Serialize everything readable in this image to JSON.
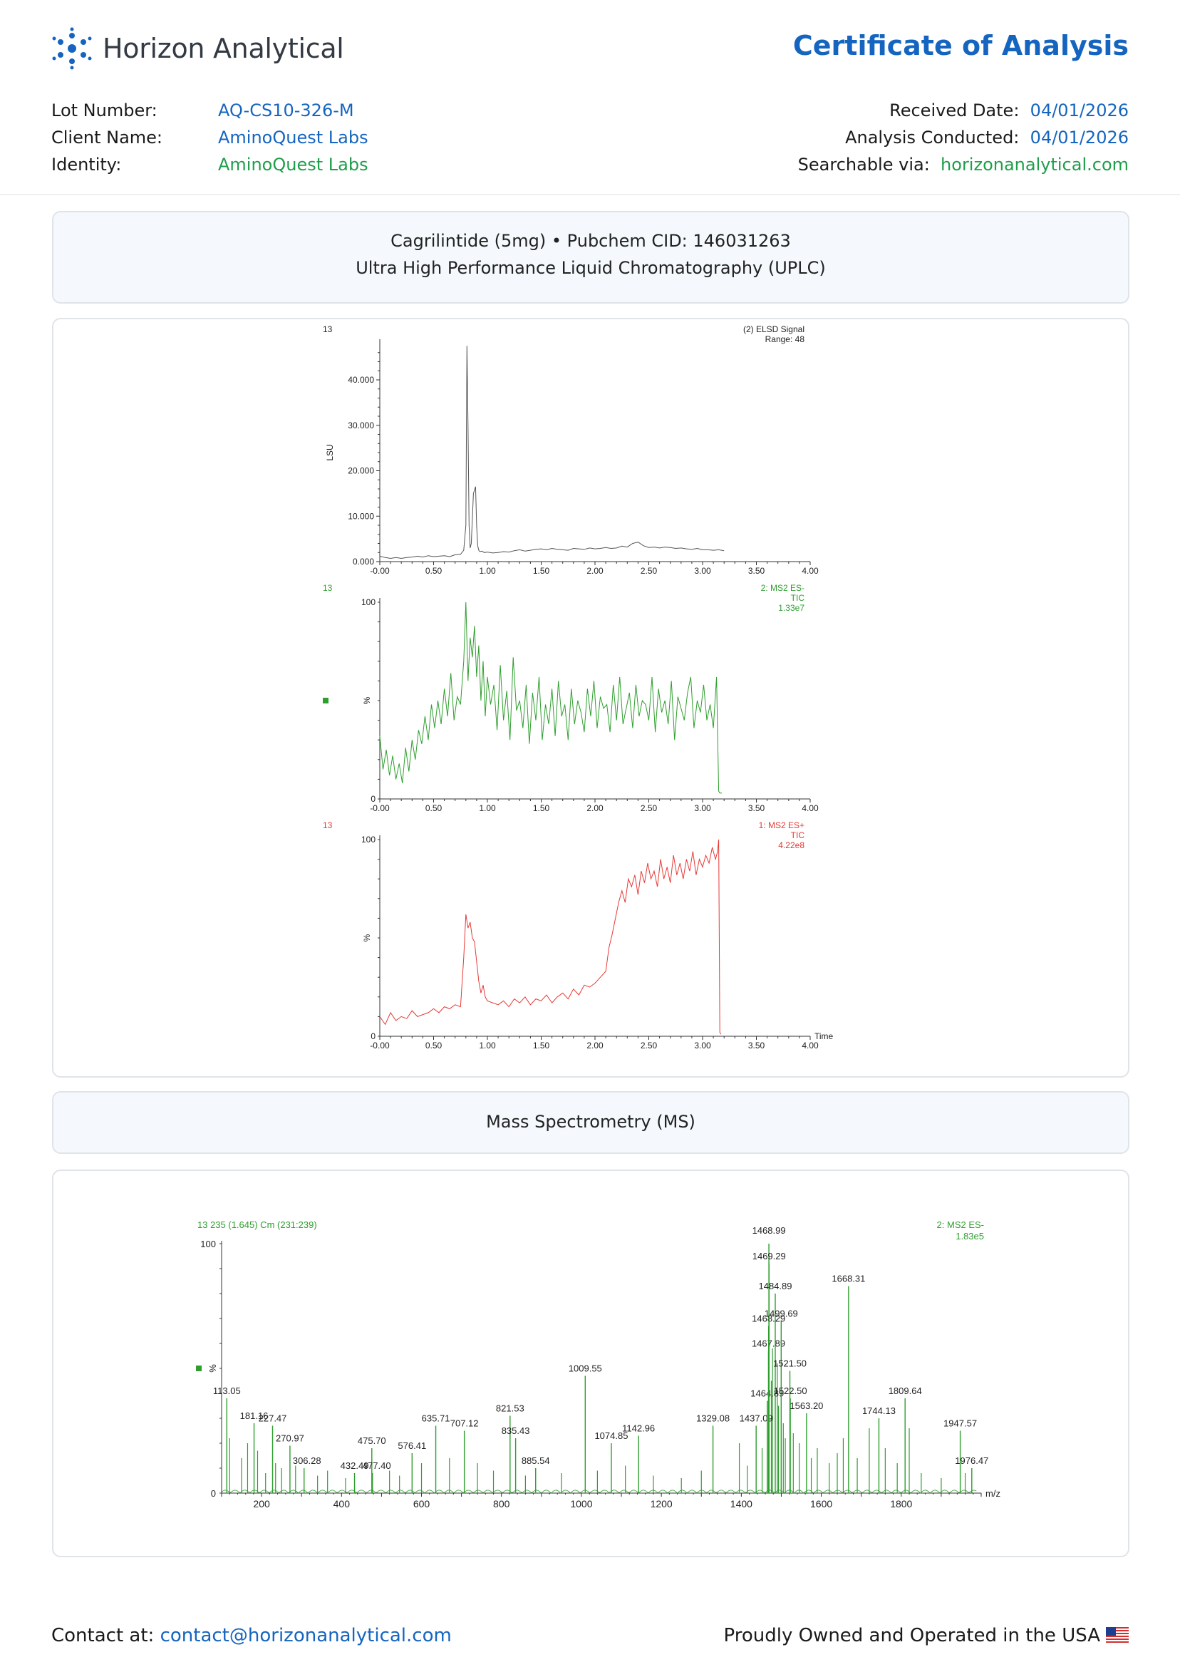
{
  "brand": {
    "name": "Horizon Analytical",
    "document_title": "Certificate of Analysis",
    "accent_color": "#1565c0",
    "green_color": "#1e9e4a"
  },
  "meta": {
    "lot_label": "Lot Number:",
    "lot_value": "AQ-CS10-326-M",
    "client_label": "Client Name:",
    "client_value": "AminoQuest Labs",
    "identity_label": "Identity:",
    "identity_value": "AminoQuest Labs",
    "received_label": "Received Date:",
    "received_value": "04/01/2026",
    "conducted_label": "Analysis Conducted:",
    "conducted_value": "04/01/2026",
    "search_label": "Searchable via:",
    "search_value": "horizonanalytical.com"
  },
  "uplc_section": {
    "line1": "Cagrilintide (5mg) • Pubchem CID: 146031263",
    "line2": "Ultra High Performance Liquid Chromatography (UPLC)"
  },
  "ms_section": {
    "title": "Mass Spectrometry (MS)"
  },
  "footer": {
    "contact_label": "Contact at:",
    "contact_email": "contact@horizonanalytical.com",
    "made_in": "Proudly Owned and Operated in the USA"
  },
  "chart_data": [
    {
      "type": "line",
      "corner_label": "13",
      "legend_line1": "(2) ELSD Signal",
      "legend_line2": "Range: 48",
      "ylabel": "LSU",
      "xlim": [
        0,
        4
      ],
      "ylim": [
        0,
        48
      ],
      "x_ticks": [
        "-0.00",
        "0.50",
        "1.00",
        "1.50",
        "2.00",
        "2.50",
        "3.00",
        "3.50",
        "4.00"
      ],
      "y_ticks": [
        "0.000",
        "10.000",
        "20.000",
        "30.000",
        "40.000"
      ],
      "color": "#555555",
      "x": [
        0,
        0.05,
        0.1,
        0.15,
        0.2,
        0.25,
        0.3,
        0.35,
        0.4,
        0.45,
        0.5,
        0.55,
        0.6,
        0.65,
        0.7,
        0.75,
        0.78,
        0.8,
        0.81,
        0.82,
        0.83,
        0.84,
        0.85,
        0.87,
        0.89,
        0.9,
        0.91,
        0.92,
        0.93,
        0.95,
        0.97,
        1.0,
        1.05,
        1.1,
        1.15,
        1.2,
        1.25,
        1.3,
        1.35,
        1.4,
        1.45,
        1.5,
        1.55,
        1.6,
        1.65,
        1.7,
        1.75,
        1.8,
        1.85,
        1.9,
        1.95,
        2.0,
        2.05,
        2.1,
        2.15,
        2.2,
        2.25,
        2.3,
        2.35,
        2.4,
        2.45,
        2.5,
        2.55,
        2.6,
        2.65,
        2.7,
        2.75,
        2.8,
        2.85,
        2.9,
        2.95,
        3.0,
        3.05,
        3.1,
        3.15,
        3.2
      ],
      "y": [
        1.2,
        0.9,
        0.7,
        0.9,
        0.7,
        0.9,
        1.0,
        1.2,
        1.0,
        1.3,
        1.1,
        1.2,
        1.3,
        1.1,
        1.5,
        1.6,
        2.5,
        8,
        47.5,
        30,
        8,
        3,
        4,
        15,
        16.5,
        8,
        3.5,
        2.5,
        2.2,
        2.3,
        2,
        2.1,
        1.9,
        2.0,
        2.2,
        2.1,
        2.4,
        2.6,
        2.3,
        2.5,
        2.7,
        2.8,
        2.6,
        2.9,
        2.7,
        2.6,
        2.5,
        2.9,
        2.8,
        2.7,
        3.0,
        2.8,
        2.9,
        3.1,
        2.9,
        3.0,
        3.4,
        3.2,
        4.0,
        4.3,
        3.5,
        3.1,
        3.2,
        3.0,
        3.2,
        3.1,
        2.9,
        3.0,
        2.8,
        2.7,
        2.9,
        2.6,
        2.6,
        2.5,
        2.6,
        2.4
      ]
    },
    {
      "type": "line",
      "corner_label": "13",
      "legend_line1": "2: MS2 ES-",
      "legend_line2": "TIC",
      "legend_line3": "1.33e7",
      "ylabel": "%",
      "xlim": [
        0,
        4
      ],
      "ylim": [
        0,
        100
      ],
      "x_ticks": [
        "-0.00",
        "0.50",
        "1.00",
        "1.50",
        "2.00",
        "2.50",
        "3.00",
        "3.50",
        "4.00"
      ],
      "y_ticks": [
        "0",
        "100"
      ],
      "color": "#2e9e2e",
      "x": [
        0,
        0.03,
        0.06,
        0.09,
        0.12,
        0.15,
        0.18,
        0.21,
        0.24,
        0.27,
        0.3,
        0.33,
        0.36,
        0.39,
        0.42,
        0.45,
        0.48,
        0.51,
        0.54,
        0.57,
        0.6,
        0.63,
        0.66,
        0.69,
        0.72,
        0.75,
        0.78,
        0.8,
        0.82,
        0.84,
        0.86,
        0.88,
        0.9,
        0.92,
        0.94,
        0.96,
        0.98,
        1.0,
        1.03,
        1.06,
        1.09,
        1.12,
        1.15,
        1.18,
        1.21,
        1.24,
        1.27,
        1.3,
        1.33,
        1.36,
        1.39,
        1.42,
        1.45,
        1.48,
        1.51,
        1.54,
        1.57,
        1.6,
        1.63,
        1.66,
        1.69,
        1.72,
        1.75,
        1.78,
        1.81,
        1.84,
        1.87,
        1.9,
        1.93,
        1.96,
        1.99,
        2.02,
        2.05,
        2.08,
        2.11,
        2.14,
        2.17,
        2.2,
        2.23,
        2.26,
        2.29,
        2.32,
        2.35,
        2.38,
        2.41,
        2.44,
        2.47,
        2.5,
        2.53,
        2.56,
        2.59,
        2.62,
        2.65,
        2.68,
        2.71,
        2.74,
        2.77,
        2.8,
        2.83,
        2.86,
        2.89,
        2.92,
        2.95,
        2.98,
        3.01,
        3.04,
        3.07,
        3.1,
        3.13,
        3.15,
        3.16,
        3.18
      ],
      "y": [
        32,
        15,
        25,
        12,
        22,
        10,
        18,
        8,
        26,
        14,
        30,
        20,
        35,
        28,
        42,
        30,
        48,
        36,
        50,
        38,
        56,
        42,
        64,
        40,
        52,
        48,
        70,
        100,
        60,
        82,
        72,
        88,
        62,
        78,
        50,
        70,
        42,
        62,
        48,
        58,
        35,
        68,
        40,
        55,
        30,
        72,
        45,
        50,
        36,
        58,
        28,
        54,
        40,
        62,
        30,
        48,
        38,
        56,
        32,
        60,
        42,
        48,
        30,
        56,
        38,
        50,
        44,
        34,
        56,
        42,
        60,
        36,
        52,
        46,
        48,
        34,
        58,
        40,
        62,
        38,
        46,
        54,
        36,
        58,
        42,
        50,
        48,
        40,
        62,
        34,
        56,
        44,
        50,
        38,
        60,
        30,
        52,
        46,
        40,
        54,
        62,
        36,
        50,
        44,
        58,
        40,
        48,
        36,
        62,
        4,
        3,
        3
      ]
    },
    {
      "type": "line",
      "corner_label": "13",
      "legend_line1": "1: MS2 ES+",
      "legend_line2": "TIC",
      "legend_line3": "4.22e8",
      "ylabel": "%",
      "xlabel": "Time",
      "xlim": [
        0,
        4
      ],
      "ylim": [
        0,
        100
      ],
      "x_ticks": [
        "-0.00",
        "0.50",
        "1.00",
        "1.50",
        "2.00",
        "2.50",
        "3.00",
        "3.50",
        "4.00"
      ],
      "y_ticks": [
        "0",
        "100"
      ],
      "color": "#e53935",
      "x": [
        0,
        0.05,
        0.1,
        0.15,
        0.2,
        0.25,
        0.3,
        0.35,
        0.4,
        0.45,
        0.5,
        0.55,
        0.6,
        0.65,
        0.7,
        0.75,
        0.78,
        0.8,
        0.82,
        0.84,
        0.86,
        0.88,
        0.9,
        0.92,
        0.94,
        0.96,
        0.98,
        1.0,
        1.05,
        1.1,
        1.15,
        1.2,
        1.25,
        1.3,
        1.35,
        1.4,
        1.45,
        1.5,
        1.55,
        1.6,
        1.65,
        1.7,
        1.75,
        1.8,
        1.85,
        1.9,
        1.95,
        2.0,
        2.05,
        2.1,
        2.13,
        2.16,
        2.19,
        2.22,
        2.25,
        2.28,
        2.31,
        2.34,
        2.37,
        2.4,
        2.43,
        2.46,
        2.49,
        2.52,
        2.55,
        2.58,
        2.61,
        2.64,
        2.67,
        2.7,
        2.73,
        2.76,
        2.79,
        2.82,
        2.85,
        2.88,
        2.91,
        2.94,
        2.97,
        3.0,
        3.03,
        3.06,
        3.09,
        3.12,
        3.14,
        3.15,
        3.16,
        3.17
      ],
      "y": [
        10,
        6,
        12,
        8,
        10,
        9,
        13,
        10,
        11,
        12,
        14,
        12,
        15,
        14,
        16,
        15,
        40,
        62,
        55,
        58,
        50,
        48,
        38,
        28,
        22,
        26,
        20,
        18,
        17,
        16,
        18,
        15,
        19,
        17,
        20,
        16,
        19,
        18,
        21,
        17,
        20,
        22,
        19,
        24,
        21,
        26,
        25,
        27,
        30,
        33,
        45,
        52,
        60,
        68,
        74,
        68,
        80,
        76,
        82,
        72,
        84,
        78,
        88,
        80,
        84,
        76,
        90,
        80,
        86,
        78,
        92,
        82,
        88,
        80,
        90,
        84,
        94,
        82,
        90,
        86,
        92,
        88,
        96,
        90,
        94,
        100,
        2,
        1
      ]
    },
    {
      "type": "bar",
      "corner_label": "13 235 (1.645) Cm (231:239)",
      "legend_line1": "2: MS2 ES-",
      "legend_line2": "1.83e5",
      "ylabel": "%",
      "xlabel": "m/z",
      "xlim": [
        100,
        2000
      ],
      "ylim": [
        0,
        100
      ],
      "x_ticks": [
        "200",
        "400",
        "600",
        "800",
        "1000",
        "1200",
        "1400",
        "1600",
        "1800"
      ],
      "y_ticks": [
        "0",
        "100"
      ],
      "color": "#2e9e2e",
      "labeled_peaks": [
        {
          "mz": 113.05,
          "label": "113.05",
          "value": 38
        },
        {
          "mz": 181.16,
          "label": "181.16",
          "value": 28
        },
        {
          "mz": 227.47,
          "label": "227.47",
          "value": 27
        },
        {
          "mz": 270.97,
          "label": "270.97",
          "value": 19
        },
        {
          "mz": 306.28,
          "label": "306.28",
          "value": 10
        },
        {
          "mz": 432.49,
          "label": "432.49",
          "value": 8
        },
        {
          "mz": 475.7,
          "label": "475.70",
          "value": 18
        },
        {
          "mz": 477.4,
          "label": "477.40",
          "value": 8
        },
        {
          "mz": 576.41,
          "label": "576.41",
          "value": 16
        },
        {
          "mz": 635.71,
          "label": "635.71",
          "value": 27
        },
        {
          "mz": 707.12,
          "label": "707.12",
          "value": 25
        },
        {
          "mz": 821.53,
          "label": "821.53",
          "value": 31
        },
        {
          "mz": 835.43,
          "label": "835.43",
          "value": 22
        },
        {
          "mz": 885.54,
          "label": "885.54",
          "value": 10
        },
        {
          "mz": 1009.55,
          "label": "1009.55",
          "value": 47
        },
        {
          "mz": 1074.85,
          "label": "1074.85",
          "value": 20
        },
        {
          "mz": 1142.96,
          "label": "1142.96",
          "value": 23
        },
        {
          "mz": 1329.08,
          "label": "1329.08",
          "value": 27
        },
        {
          "mz": 1437.09,
          "label": "1437.09",
          "value": 27
        },
        {
          "mz": 1464.89,
          "label": "1464.89",
          "value": 37
        },
        {
          "mz": 1467.89,
          "label": "1467.89",
          "value": 57
        },
        {
          "mz": 1468.29,
          "label": "1468.29",
          "value": 67
        },
        {
          "mz": 1468.99,
          "label": "1468.99",
          "value": 100
        },
        {
          "mz": 1469.29,
          "label": "1469.29",
          "value": 92
        },
        {
          "mz": 1484.89,
          "label": "1484.89",
          "value": 80
        },
        {
          "mz": 1499.69,
          "label": "1499.69",
          "value": 69
        },
        {
          "mz": 1521.5,
          "label": "1521.50",
          "value": 49
        },
        {
          "mz": 1522.5,
          "label": "1522.50",
          "value": 38
        },
        {
          "mz": 1563.2,
          "label": "1563.20",
          "value": 32
        },
        {
          "mz": 1668.31,
          "label": "1668.31",
          "value": 83
        },
        {
          "mz": 1744.13,
          "label": "1744.13",
          "value": 30
        },
        {
          "mz": 1809.64,
          "label": "1809.64",
          "value": 38
        },
        {
          "mz": 1947.57,
          "label": "1947.57",
          "value": 25
        },
        {
          "mz": 1976.47,
          "label": "1976.47",
          "value": 10
        }
      ],
      "minor_peaks": [
        {
          "mz": 120,
          "value": 22
        },
        {
          "mz": 150,
          "value": 14
        },
        {
          "mz": 165,
          "value": 20
        },
        {
          "mz": 190,
          "value": 17
        },
        {
          "mz": 210,
          "value": 8
        },
        {
          "mz": 235,
          "value": 12
        },
        {
          "mz": 250,
          "value": 10
        },
        {
          "mz": 285,
          "value": 11
        },
        {
          "mz": 340,
          "value": 7
        },
        {
          "mz": 365,
          "value": 9
        },
        {
          "mz": 410,
          "value": 6
        },
        {
          "mz": 520,
          "value": 9
        },
        {
          "mz": 545,
          "value": 7
        },
        {
          "mz": 600,
          "value": 12
        },
        {
          "mz": 670,
          "value": 14
        },
        {
          "mz": 740,
          "value": 12
        },
        {
          "mz": 780,
          "value": 9
        },
        {
          "mz": 860,
          "value": 7
        },
        {
          "mz": 950,
          "value": 8
        },
        {
          "mz": 1040,
          "value": 9
        },
        {
          "mz": 1110,
          "value": 11
        },
        {
          "mz": 1180,
          "value": 7
        },
        {
          "mz": 1250,
          "value": 6
        },
        {
          "mz": 1300,
          "value": 9
        },
        {
          "mz": 1395,
          "value": 20
        },
        {
          "mz": 1415,
          "value": 11
        },
        {
          "mz": 1452,
          "value": 18
        },
        {
          "mz": 1475,
          "value": 45
        },
        {
          "mz": 1478,
          "value": 58
        },
        {
          "mz": 1490,
          "value": 52
        },
        {
          "mz": 1493,
          "value": 35
        },
        {
          "mz": 1505,
          "value": 28
        },
        {
          "mz": 1510,
          "value": 22
        },
        {
          "mz": 1530,
          "value": 24
        },
        {
          "mz": 1545,
          "value": 20
        },
        {
          "mz": 1575,
          "value": 14
        },
        {
          "mz": 1590,
          "value": 18
        },
        {
          "mz": 1620,
          "value": 12
        },
        {
          "mz": 1640,
          "value": 16
        },
        {
          "mz": 1655,
          "value": 22
        },
        {
          "mz": 1690,
          "value": 14
        },
        {
          "mz": 1720,
          "value": 26
        },
        {
          "mz": 1760,
          "value": 18
        },
        {
          "mz": 1790,
          "value": 12
        },
        {
          "mz": 1820,
          "value": 26
        },
        {
          "mz": 1850,
          "value": 8
        },
        {
          "mz": 1900,
          "value": 6
        },
        {
          "mz": 1960,
          "value": 8
        }
      ]
    }
  ]
}
